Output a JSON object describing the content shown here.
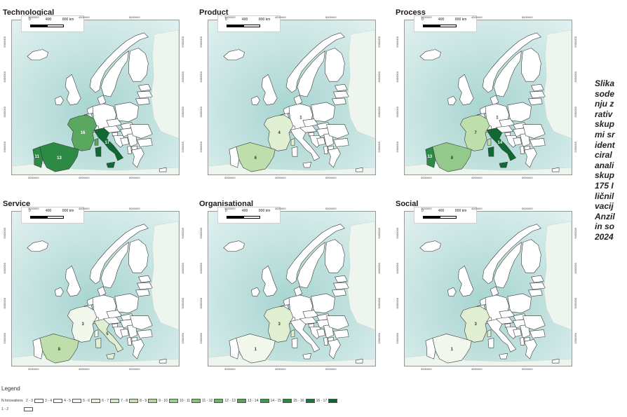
{
  "panels": [
    {
      "title": "Technological",
      "fills": {
        "FR": 5,
        "ES": 6,
        "PT": 6,
        "IT": 7
      },
      "labels": [
        {
          "code": "FR",
          "text": "16"
        },
        {
          "code": "ES",
          "text": "13"
        },
        {
          "code": "PT",
          "text": "11"
        },
        {
          "code": "IT",
          "text": "17"
        }
      ]
    },
    {
      "title": "Product",
      "fills": {
        "FR": 2,
        "ES": 3
      },
      "labels": [
        {
          "code": "FR",
          "text": "4"
        },
        {
          "code": "ES",
          "text": "6"
        },
        {
          "code": "DE",
          "text": "1"
        }
      ]
    },
    {
      "title": "Process",
      "fills": {
        "FR": 3,
        "ES": 4,
        "PT": 6,
        "IT": 7
      },
      "labels": [
        {
          "code": "FR",
          "text": "7"
        },
        {
          "code": "ES",
          "text": "8"
        },
        {
          "code": "PT",
          "text": "13"
        },
        {
          "code": "IT",
          "text": "14"
        },
        {
          "code": "DE",
          "text": "1"
        }
      ]
    },
    {
      "title": "Service",
      "fills": {
        "FR": 1,
        "ES": 3,
        "IT": 2
      },
      "labels": [
        {
          "code": "FR",
          "text": "3"
        },
        {
          "code": "ES",
          "text": "8"
        },
        {
          "code": "IT",
          "text": "5"
        }
      ]
    },
    {
      "title": "Organisational",
      "fills": {
        "FR": 2,
        "ES": 1
      },
      "labels": [
        {
          "code": "FR",
          "text": "3"
        },
        {
          "code": "ES",
          "text": "1"
        }
      ]
    },
    {
      "title": "Social",
      "fills": {
        "FR": 2,
        "ES": 1
      },
      "labels": [
        {
          "code": "FR",
          "text": "3"
        },
        {
          "code": "ES",
          "text": "1"
        }
      ]
    }
  ],
  "axes": {
    "x_ticks": [
      "3000000",
      "4000000",
      "5000000"
    ],
    "y_ticks": [
      "5000000",
      "4000000",
      "3000000",
      "2000000"
    ]
  },
  "scale_bar": {
    "labels": [
      "0",
      "400",
      "800 km"
    ]
  },
  "caption_lines": [
    "Slika",
    "sode",
    "nju z",
    "rativ",
    "skup",
    "mi sr",
    "ident",
    "ciral",
    "anali",
    "skup",
    "175 I",
    "ličnil",
    "vacij",
    "Anzil",
    "in so",
    "2024"
  ],
  "legend": {
    "title": "Legend",
    "label": "N Innovations",
    "classes": [
      "2 - 3",
      "3 - 4",
      "4 - 5",
      "5 - 6",
      "6 - 7",
      "7 - 8",
      "8 - 9",
      "9 - 10",
      "10 - 11",
      "11 - 12",
      "12 - 13",
      "13 - 14",
      "14 - 15",
      "15 - 16",
      "16 - 17"
    ],
    "second_row_label": "1 - 2"
  },
  "colors": {
    "sea_light": "#dff0ef",
    "sea_deep": "#a6d4d0",
    "land_other": "#ffffff",
    "border": "#3a3a3a",
    "fill_scale": [
      "#ffffff",
      "#f2f8ec",
      "#e0efd2",
      "#bedfac",
      "#93c98a",
      "#5aa860",
      "#2c8a45",
      "#0f6a32"
    ],
    "legend_swatches": [
      "#ffffff",
      "#f7fbf3",
      "#eef6e6",
      "#e3f1d7",
      "#d5eac4",
      "#c4e1b0",
      "#b0d79b",
      "#9ccd88",
      "#86c177",
      "#6eb467",
      "#56a65a",
      "#3f974d",
      "#2b8743",
      "#1a7739",
      "#0e6530"
    ]
  }
}
